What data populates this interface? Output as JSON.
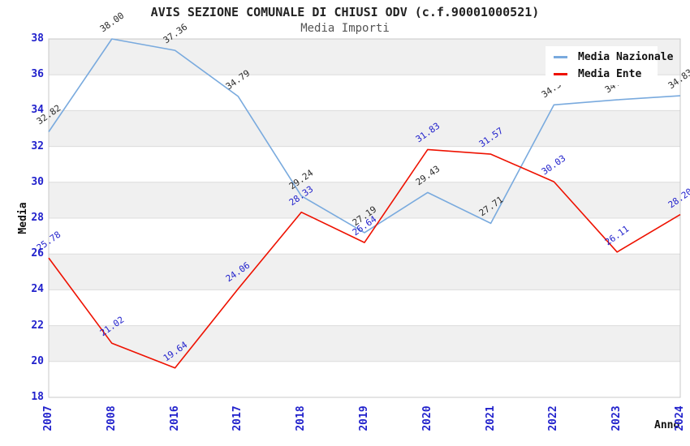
{
  "header": {
    "title": "AVIS SEZIONE COMUNALE DI CHIUSI ODV (c.f.90001000521)",
    "subtitle": "Media Importi"
  },
  "chart_data": {
    "type": "line",
    "title": "AVIS SEZIONE COMUNALE DI CHIUSI ODV (c.f.90001000521)",
    "subtitle": "Media Importi",
    "xlabel": "Anno",
    "ylabel": "Media",
    "categories": [
      "2007",
      "2008",
      "2016",
      "2017",
      "2018",
      "2019",
      "2020",
      "2021",
      "2022",
      "2023",
      "2024"
    ],
    "series": [
      {
        "name": "Media Nazionale",
        "color": "#79aade",
        "label_color": "#2b2b2b",
        "values": [
          32.82,
          38.0,
          37.36,
          34.79,
          29.24,
          27.19,
          29.43,
          27.71,
          34.32,
          34.6,
          34.83
        ]
      },
      {
        "name": "Media Ente",
        "color": "#ee1100",
        "label_color": "#2222cc",
        "values": [
          25.78,
          21.02,
          19.64,
          24.06,
          28.33,
          26.64,
          31.83,
          31.57,
          30.03,
          26.11,
          28.2
        ]
      }
    ],
    "ylim": [
      18,
      38
    ],
    "ytick_step": 2,
    "grid": "alternating-bands",
    "legend_position": "top-right",
    "value_label_decimals": 2,
    "colors": {
      "tick_label": "#2222cc",
      "band_fill": "#f0f0f0",
      "plot_border": "#c8c8c8",
      "grid_line": "#dcdcdc",
      "background": "#ffffff"
    }
  }
}
